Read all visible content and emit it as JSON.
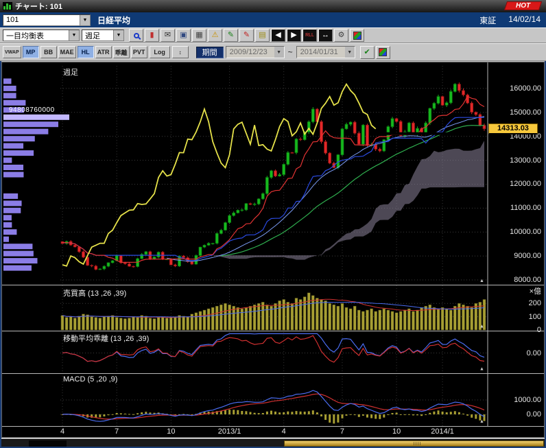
{
  "window": {
    "title": "チャート: 101",
    "hot_label": "HOT"
  },
  "header": {
    "code": "101",
    "name": "日経平均",
    "exchange": "東証",
    "date": "14/02/14"
  },
  "toolbar": {
    "indicator_select": "一目均衡表",
    "timeframe_select": "週足",
    "icons": [
      {
        "name": "zoom-icon",
        "type": "mag"
      },
      {
        "name": "candle-chart-icon",
        "glyph": "▮",
        "fg": "#c03030"
      },
      {
        "name": "mail-icon",
        "glyph": "✉",
        "fg": "#303030"
      },
      {
        "name": "capture-icon",
        "glyph": "▣",
        "fg": "#304880"
      },
      {
        "name": "grid-icon",
        "glyph": "▦",
        "fg": "#404040"
      },
      {
        "name": "alert-icon",
        "glyph": "⚠",
        "fg": "#c89000"
      },
      {
        "name": "pencil-green-icon",
        "glyph": "✎",
        "fg": "#188018"
      },
      {
        "name": "pencil-red-icon",
        "glyph": "✎",
        "fg": "#c02020"
      },
      {
        "name": "note-icon",
        "glyph": "▤",
        "fg": "#9a8a10"
      },
      {
        "name": "scroll-left-icon",
        "glyph": "◀",
        "fg": "#ffffff",
        "bg": "#101010"
      },
      {
        "name": "scroll-right-icon",
        "glyph": "▶",
        "fg": "#ffffff",
        "bg": "#101010"
      },
      {
        "name": "rll-button",
        "glyph": "RLL",
        "fg": "#ff4040",
        "bg": "#101010"
      },
      {
        "name": "pan-icon",
        "glyph": "↔",
        "fg": "#ffffff",
        "bg": "#101010"
      },
      {
        "name": "settings-icon",
        "glyph": "⚙",
        "fg": "#404040"
      },
      {
        "name": "palette-icon",
        "type": "rgb"
      }
    ],
    "small_buttons": [
      {
        "label": "VWAP",
        "active": false
      },
      {
        "label": "MP",
        "active": true
      },
      {
        "label": "BB",
        "active": false
      },
      {
        "label": "MAE",
        "active": false
      },
      {
        "label": "HL",
        "active": true
      },
      {
        "label": "ATR",
        "active": false
      },
      {
        "label": "乖離",
        "active": false
      },
      {
        "label": "PVT",
        "active": false
      }
    ],
    "log_label": "Log",
    "spin_glyph": "↕",
    "period_label": "期間",
    "date_from": "2009/12/23",
    "date_tilde": "~",
    "date_to": "2014/01/31",
    "trailing_icons": [
      {
        "name": "apply-icon",
        "glyph": "✔",
        "fg": "#188018"
      },
      {
        "name": "palette2-icon",
        "type": "rgb"
      }
    ]
  },
  "chart": {
    "timeframe_label": "週足",
    "profile_value": "94808760000",
    "last_price_label": "14313.03",
    "pane_arrow_glyph": "▲",
    "price_ticks": [
      {
        "label": "16000.00",
        "value": 16000
      },
      {
        "label": "15000.00",
        "value": 15000
      },
      {
        "label": "14000.00",
        "value": 14000
      },
      {
        "label": "13000.00",
        "value": 13000
      },
      {
        "label": "12000.00",
        "value": 12000
      },
      {
        "label": "11000.00",
        "value": 11000
      },
      {
        "label": "10000.00",
        "value": 10000
      },
      {
        "label": "9000.00",
        "value": 9000
      },
      {
        "label": "8000.00",
        "value": 8000
      }
    ],
    "x_ticks": [
      {
        "label": "4",
        "i": 0
      },
      {
        "label": "7",
        "i": 13
      },
      {
        "label": "10",
        "i": 26
      },
      {
        "label": "2013/1",
        "i": 40
      },
      {
        "label": "4",
        "i": 53
      },
      {
        "label": "7",
        "i": 67
      },
      {
        "label": "10",
        "i": 80
      },
      {
        "label": "2014/1",
        "i": 91
      }
    ],
    "panels": {
      "volume": {
        "title": "売買高 (13 ,26 ,39)",
        "unit": "×億",
        "ticks": [
          {
            "label": "200",
            "value": 200
          },
          {
            "label": "100",
            "value": 100
          },
          {
            "label": "0",
            "value": 0
          }
        ]
      },
      "deviation": {
        "title": "移動平均乖離 (13 ,26 ,39)",
        "ticks": [
          {
            "label": "0.00",
            "value": 0
          }
        ]
      },
      "macd": {
        "title": "MACD (5 ,20 ,9)",
        "ticks": [
          {
            "label": "1000.00",
            "value": 1000
          },
          {
            "label": "0.00",
            "value": 0
          }
        ]
      }
    }
  },
  "chart_data": {
    "type": "candlestick",
    "symbol": "日経平均",
    "timeframe": "週足",
    "period_from": "2009/12/23",
    "period_to": "2014/01/31",
    "visible_range": "2012/04 - 2014/02",
    "ylim": [
      7800,
      16800
    ],
    "last_price": 14313.03,
    "closes": [
      9520,
      9610,
      9460,
      9380,
      9180,
      8950,
      8610,
      8580,
      8440,
      8460,
      8570,
      8720,
      8800,
      9020,
      8720,
      8670,
      8570,
      8560,
      8890,
      9070,
      9180,
      8870,
      8960,
      9160,
      8870,
      8870,
      8630,
      8580,
      9000,
      8930,
      8760,
      8660,
      9020,
      9370,
      9450,
      9530,
      9530,
      9940,
      10080,
      10395,
      10688,
      10800,
      10913,
      10927,
      11191,
      11153,
      11173,
      11385,
      11606,
      12283,
      12560,
      12340,
      12400,
      12830,
      13320,
      13316,
      13884,
      13860,
      14180,
      14607,
      15138,
      14612,
      13775,
      13300,
      12880,
      12690,
      13230,
      14310,
      14500,
      14590,
      14130,
      13670,
      14470,
      13615,
      13650,
      13465,
      13390,
      13860,
      14405,
      14740,
      14620,
      14024,
      14190,
      14560,
      14090,
      14330,
      14087,
      14560,
      15166,
      15380,
      15662,
      15300,
      15400,
      15870,
      16180,
      15912,
      15730,
      15390,
      15010,
      14910,
      14460,
      14313
    ],
    "volumes_x100m": [
      110,
      95,
      100,
      90,
      105,
      120,
      115,
      100,
      95,
      90,
      100,
      105,
      110,
      95,
      90,
      85,
      90,
      100,
      95,
      110,
      105,
      90,
      85,
      95,
      100,
      90,
      95,
      100,
      110,
      105,
      100,
      120,
      130,
      140,
      150,
      160,
      170,
      180,
      190,
      200,
      190,
      180,
      170,
      160,
      170,
      180,
      190,
      200,
      210,
      190,
      180,
      200,
      220,
      230,
      210,
      200,
      240,
      230,
      250,
      280,
      260,
      240,
      230,
      220,
      200,
      190,
      180,
      200,
      170,
      160,
      180,
      150,
      140,
      150,
      160,
      140,
      150,
      160,
      150,
      140,
      130,
      140,
      150,
      160,
      140,
      150,
      170,
      180,
      190,
      170,
      160,
      170,
      160,
      150,
      180,
      200,
      190,
      180,
      170,
      200,
      210,
      230
    ],
    "indicators": [
      "一目均衡表",
      "SMA13",
      "SMA26",
      "SMA39",
      "売買高(13,26,39)",
      "移動平均乖離(13,26,39)",
      "MACD(5,20,9)"
    ],
    "colors": {
      "up": "#17b81e",
      "down": "#e22828",
      "lagging_span": "#e6e24a",
      "tenkan": "#e23333",
      "kijun": "#2a4ae0",
      "sma26": "#7b9cf5",
      "sma39": "#2faf4f",
      "cloud": "rgba(140,132,155,0.55)",
      "volume_bar": "#a79e33",
      "profile_bar": "#8b7de6",
      "price_tag_bg": "#f7c83c"
    }
  }
}
